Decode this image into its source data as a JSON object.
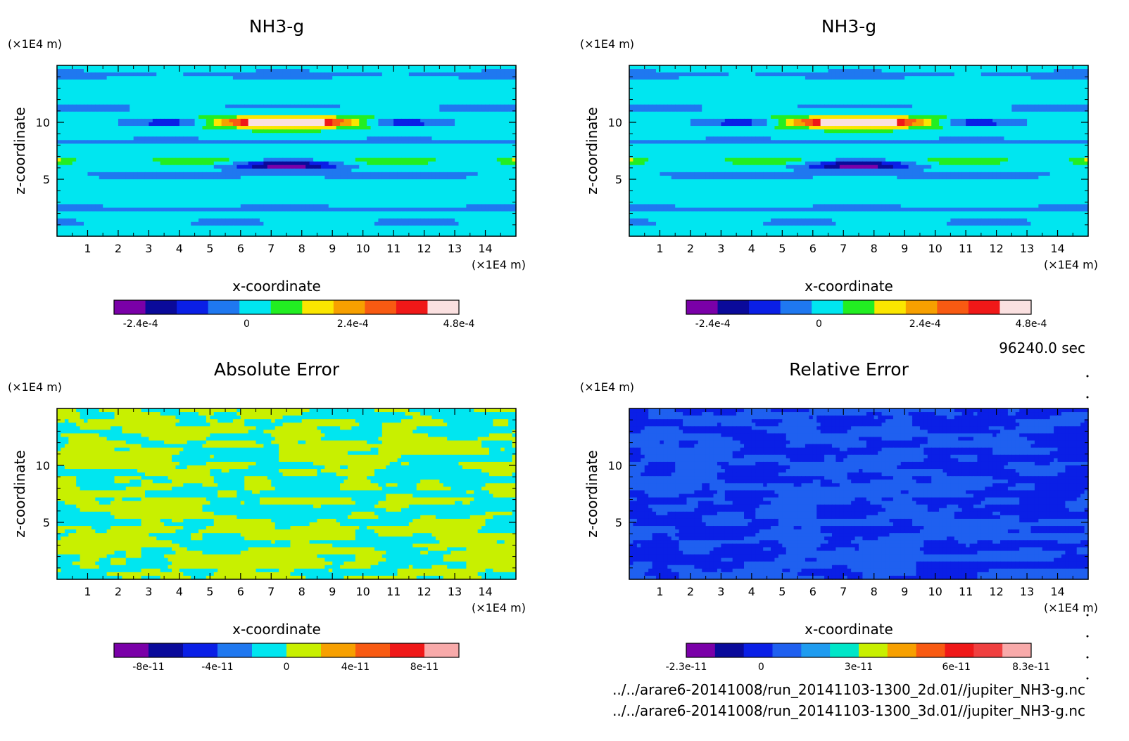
{
  "chart_data": [
    {
      "type": "heatmap",
      "title": "NH3-g",
      "xlabel": "x-coordinate",
      "ylabel": "z-coordinate",
      "x_unit": "(×1E4 m)",
      "y_unit": "(×1E4 m)",
      "xticks": [
        "1",
        "2",
        "3",
        "4",
        "5",
        "6",
        "7",
        "8",
        "9",
        "10",
        "11",
        "12",
        "13",
        "14"
      ],
      "yticks": [
        "5",
        "10"
      ],
      "xlim": [
        0,
        15
      ],
      "ylim": [
        0,
        15
      ],
      "pattern": "layered",
      "colorbar": {
        "colors": [
          "#7a00a8",
          "#0a0a9a",
          "#0a1fe6",
          "#1f78f0",
          "#00e6f0",
          "#22ee22",
          "#fbe600",
          "#f7a000",
          "#f85a12",
          "#f01818",
          "#fbe0e0"
        ],
        "tick_labels": [
          "-2.4e-4",
          "0",
          "2.4e-4",
          "4.8e-4"
        ],
        "tick_values": [
          -0.00024,
          0,
          0.00024,
          0.00048
        ],
        "range": [
          -0.0003,
          0.00048
        ]
      }
    },
    {
      "type": "heatmap",
      "title": "NH3-g",
      "xlabel": "x-coordinate",
      "ylabel": "z-coordinate",
      "x_unit": "(×1E4 m)",
      "y_unit": "(×1E4 m)",
      "xticks": [
        "1",
        "2",
        "3",
        "4",
        "5",
        "6",
        "7",
        "8",
        "9",
        "10",
        "11",
        "12",
        "13",
        "14"
      ],
      "yticks": [
        "5",
        "10"
      ],
      "xlim": [
        0,
        15
      ],
      "ylim": [
        0,
        15
      ],
      "pattern": "layered",
      "colorbar": {
        "colors": [
          "#7a00a8",
          "#0a0a9a",
          "#0a1fe6",
          "#1f78f0",
          "#00e6f0",
          "#22ee22",
          "#fbe600",
          "#f7a000",
          "#f85a12",
          "#f01818",
          "#fbe0e0"
        ],
        "tick_labels": [
          "-2.4e-4",
          "0",
          "2.4e-4",
          "4.8e-4"
        ],
        "tick_values": [
          -0.00024,
          0,
          0.00024,
          0.00048
        ],
        "range": [
          -0.0003,
          0.00048
        ]
      }
    },
    {
      "type": "heatmap",
      "title": "Absolute Error",
      "xlabel": "x-coordinate",
      "ylabel": "z-coordinate",
      "x_unit": "(×1E4 m)",
      "y_unit": "(×1E4 m)",
      "xticks": [
        "1",
        "2",
        "3",
        "4",
        "5",
        "6",
        "7",
        "8",
        "9",
        "10",
        "11",
        "12",
        "13",
        "14"
      ],
      "yticks": [
        "5",
        "10"
      ],
      "xlim": [
        0,
        15
      ],
      "ylim": [
        0,
        15
      ],
      "pattern": "noise2",
      "colorbar": {
        "colors": [
          "#7a00a8",
          "#0a0a9a",
          "#0a1fe6",
          "#1f78f0",
          "#00e6f0",
          "#c8f000",
          "#f7a000",
          "#f85a12",
          "#f01818",
          "#f8aaaa"
        ],
        "tick_labels": [
          "-8e-11",
          "-4e-11",
          "0",
          "4e-11",
          "8e-11"
        ],
        "tick_values": [
          -8e-11,
          -4e-11,
          0,
          4e-11,
          8e-11
        ],
        "range": [
          -1e-10,
          1e-10
        ]
      }
    },
    {
      "type": "heatmap",
      "title": "Relative Error",
      "xlabel": "x-coordinate",
      "ylabel": "z-coordinate",
      "x_unit": "(×1E4 m)",
      "y_unit": "(×1E4 m)",
      "xticks": [
        "1",
        "2",
        "3",
        "4",
        "5",
        "6",
        "7",
        "8",
        "9",
        "10",
        "11",
        "12",
        "13",
        "14"
      ],
      "yticks": [
        "5",
        "10"
      ],
      "xlim": [
        0,
        15
      ],
      "ylim": [
        0,
        15
      ],
      "pattern": "noise3",
      "colorbar": {
        "colors": [
          "#7a00a8",
          "#0a0a9a",
          "#0a1fe6",
          "#1f60f0",
          "#1f9cf0",
          "#00e6c8",
          "#c8f000",
          "#f7a000",
          "#f85a12",
          "#f01818",
          "#f04040",
          "#f8aaaa"
        ],
        "tick_labels": [
          "-2.3e-11",
          "0",
          "3e-11",
          "6e-11",
          "8.3e-11"
        ],
        "tick_values": [
          -2.3e-11,
          0,
          3e-11,
          6e-11,
          8.3e-11
        ],
        "range": [
          -2.3e-11,
          8.3e-11
        ]
      }
    }
  ],
  "info": {
    "time": "96240.0 sec",
    "file1": "../../arare6-20141008/run_20141103-1300_2d.01//jupiter_NH3-g.nc",
    "file2": "../../arare6-20141008/run_20141103-1300_3d.01//jupiter_NH3-g.nc"
  }
}
